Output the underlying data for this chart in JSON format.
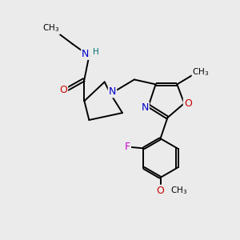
{
  "bg_color": "#ebebeb",
  "atom_colors": {
    "N": "#0000cc",
    "O": "#cc0000",
    "F": "#cc00cc",
    "H": "#007070",
    "C": "#000000"
  },
  "bond_color": "#000000",
  "bond_width": 1.4
}
